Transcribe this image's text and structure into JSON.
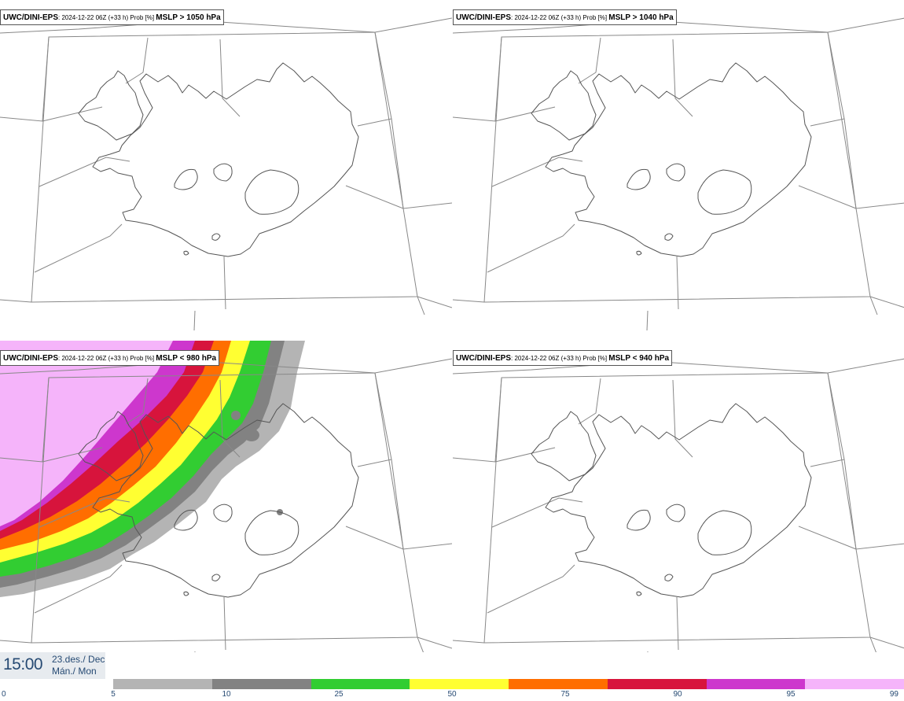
{
  "panels": [
    {
      "source": "UWC/DINI-EPS",
      "meta": ": 2024-12-22 06Z (+33 h) Prob [%] ",
      "variable": "MSLP > 1050 hPa"
    },
    {
      "source": "UWC/DINI-EPS",
      "meta": ": 2024-12-22 06Z (+33 h) Prob [%] ",
      "variable": "MSLP > 1040 hPa"
    },
    {
      "source": "UWC/DINI-EPS",
      "meta": ": 2024-12-22 06Z (+33 h) Prob [%] ",
      "variable": "MSLP < 980 hPa"
    },
    {
      "source": "UWC/DINI-EPS",
      "meta": ": 2024-12-22 06Z (+33 h) Prob [%] ",
      "variable": "MSLP < 940 hPa"
    }
  ],
  "time": {
    "clock": "15:00",
    "date_line1": "23.des./ Dec",
    "date_line2": "Mán./ Mon"
  },
  "legend": {
    "ticks": [
      "0",
      "5",
      "10",
      "25",
      "50",
      "75",
      "90",
      "95",
      "99"
    ],
    "colors": [
      "#b4b4b4",
      "#828282",
      "#32cd32",
      "#ffff32",
      "#ff6e00",
      "#d7143c",
      "#cd37cd",
      "#f5b4fa"
    ]
  },
  "map_colors": {
    "border": "#888888",
    "coast": "#555555"
  }
}
